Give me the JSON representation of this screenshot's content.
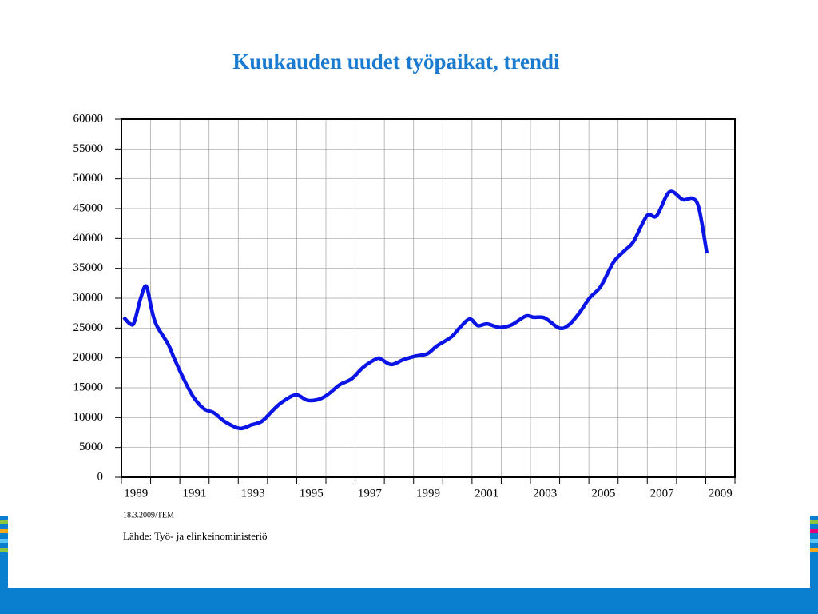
{
  "chart_data": {
    "type": "line",
    "title": "Kuukauden uudet työpaikat, trendi",
    "note": "18.3.2009/TEM",
    "source": "Lähde: Työ- ja elinkeinoministeriö",
    "xlim": [
      1989,
      2010
    ],
    "ylim": [
      0,
      60000
    ],
    "yticks": [
      0,
      5000,
      10000,
      15000,
      20000,
      25000,
      30000,
      35000,
      40000,
      45000,
      50000,
      55000,
      60000
    ],
    "xticks": [
      {
        "value": 1989.5,
        "label": "1989"
      },
      {
        "value": 1991.5,
        "label": "1991"
      },
      {
        "value": 1993.5,
        "label": "1993"
      },
      {
        "value": 1995.5,
        "label": "1995"
      },
      {
        "value": 1997.5,
        "label": "1997"
      },
      {
        "value": 1999.5,
        "label": "1999"
      },
      {
        "value": 2001.5,
        "label": "2001"
      },
      {
        "value": 2003.5,
        "label": "2003"
      },
      {
        "value": 2005.5,
        "label": "2005"
      },
      {
        "value": 2007.5,
        "label": "2007"
      },
      {
        "value": 2009.5,
        "label": "2009"
      }
    ],
    "xminorticks": [
      1990,
      1991,
      1992,
      1993,
      1994,
      1995,
      1996,
      1997,
      1998,
      1999,
      2000,
      2001,
      2002,
      2003,
      2004,
      2005,
      2006,
      2007,
      2008,
      2009
    ],
    "grid": true,
    "series": [
      {
        "color": "#0a14e6",
        "x": [
          1989.08,
          1989.3,
          1989.44,
          1989.66,
          1989.85,
          1990.04,
          1990.2,
          1990.6,
          1990.8,
          1991.13,
          1991.46,
          1991.82,
          1992.17,
          1992.55,
          1993.05,
          1993.46,
          1993.81,
          1994.14,
          1994.47,
          1994.96,
          1995.37,
          1995.78,
          1996.1,
          1996.47,
          1996.88,
          1997.29,
          1997.75,
          1997.92,
          1998.24,
          1998.65,
          1999.06,
          1999.47,
          1999.8,
          2000.29,
          2000.57,
          2000.92,
          2001.2,
          2001.52,
          2001.93,
          2002.34,
          2002.84,
          2003.11,
          2003.49,
          2003.98,
          2004.31,
          2004.67,
          2005.02,
          2005.41,
          2005.84,
          2006.23,
          2006.53,
          2006.99,
          2007.32,
          2007.76,
          2008.22,
          2008.55,
          2008.77,
          2009.04
        ],
        "values": [
          26800,
          25700,
          26000,
          30000,
          32000,
          28000,
          25500,
          22300,
          20000,
          16500,
          13500,
          11500,
          10800,
          9300,
          8200,
          8800,
          9400,
          11000,
          12500,
          13800,
          12900,
          13100,
          14000,
          15500,
          16500,
          18500,
          19900,
          19700,
          18900,
          19700,
          20300,
          20700,
          22000,
          23500,
          25000,
          26500,
          25400,
          25700,
          25100,
          25500,
          27000,
          26800,
          26700,
          25000,
          25500,
          27500,
          30000,
          32000,
          36000,
          38000,
          39500,
          43800,
          43800,
          47800,
          46500,
          46700,
          45000,
          37500
        ]
      }
    ]
  }
}
